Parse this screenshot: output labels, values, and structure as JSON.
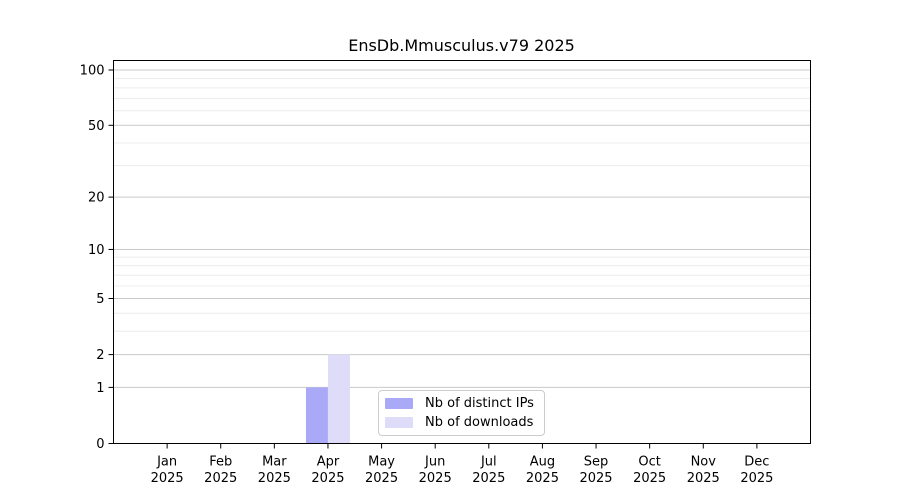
{
  "chart_data": {
    "type": "bar",
    "title": "EnsDb.Mmusculus.v79 2025",
    "categories": [
      "Jan",
      "Feb",
      "Mar",
      "Apr",
      "May",
      "Jun",
      "Jul",
      "Aug",
      "Sep",
      "Oct",
      "Nov",
      "Dec"
    ],
    "year_label": "2025",
    "series": [
      {
        "name": "Nb of distinct IPs",
        "color": "#aaa9f7",
        "values": [
          0,
          0,
          0,
          1,
          0,
          0,
          0,
          0,
          0,
          0,
          0,
          0
        ]
      },
      {
        "name": "Nb of downloads",
        "color": "#dedcf9",
        "values": [
          0,
          0,
          0,
          2,
          0,
          0,
          0,
          0,
          0,
          0,
          0,
          0
        ]
      }
    ],
    "yscale": "log1p",
    "ylim": [
      0,
      113
    ],
    "y_major_ticks": [
      0,
      1,
      2,
      5,
      10,
      20,
      50,
      100
    ],
    "y_minor_gridlines": [
      3,
      4,
      6,
      7,
      8,
      9,
      30,
      40,
      60,
      70,
      80,
      90
    ],
    "grid": true,
    "legend_position": "lower-center-inside",
    "colors": {
      "major_grid": "#c9c9c9",
      "minor_grid": "#ececec",
      "axis": "#000000",
      "text": "#000000",
      "background": "#ffffff"
    }
  }
}
